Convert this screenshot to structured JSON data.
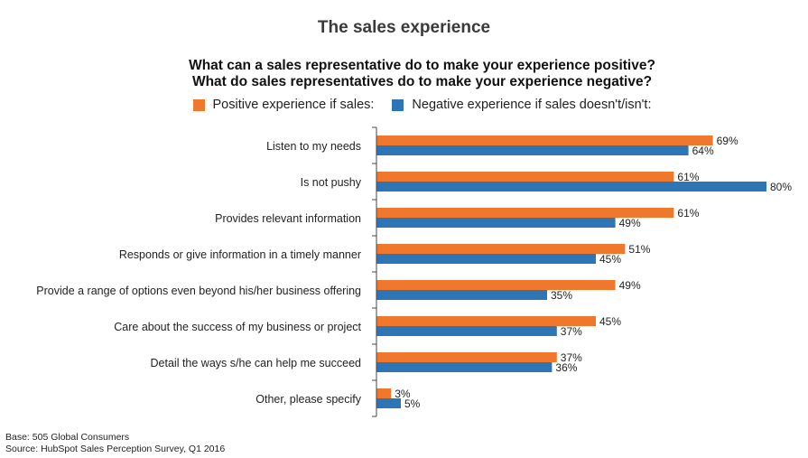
{
  "title": "The sales experience",
  "subtitle_line1": "What can a sales representative do to make your experience positive?",
  "subtitle_line2": "What do sales representatives do to make your experience negative?",
  "footer": {
    "base": "Base: 505 Global Consumers",
    "source": "Source: HubSpot Sales Perception Survey, Q1 2016"
  },
  "colors": {
    "positive": "#f0782d",
    "negative": "#2e75b6"
  },
  "chart_data": {
    "type": "bar",
    "orientation": "horizontal",
    "categories": [
      "Listen to my needs",
      "Is not pushy",
      "Provides relevant information",
      "Responds or give information in a timely manner",
      "Provide a range of options even beyond his/her business offering",
      "Care about the success of my business or project",
      "Detail the ways s/he can help me succeed",
      "Other, please specify"
    ],
    "series": [
      {
        "name": "Positive experience if sales:",
        "values": [
          69,
          61,
          61,
          51,
          49,
          45,
          37,
          3
        ]
      },
      {
        "name": "Negative experience if sales doesn't/isn't:",
        "values": [
          64,
          80,
          49,
          45,
          35,
          37,
          36,
          5
        ]
      }
    ],
    "value_suffix": "%",
    "xlim": [
      0,
      100
    ],
    "legend_position": "top",
    "grid": false
  }
}
